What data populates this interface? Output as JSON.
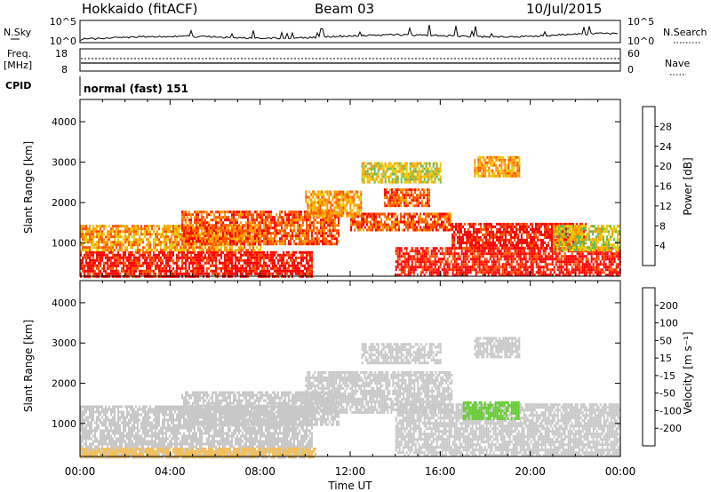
{
  "header": {
    "station": "Hokkaido (fitACF)",
    "beam": "Beam 03",
    "date": "10/Jul/2015"
  },
  "top_panels": {
    "nsky_label": "N.Sky",
    "nsearch_label": "N.Search",
    "noise_ticks": [
      "10^5",
      "10^0"
    ],
    "freq_label": "Freq.",
    "freq_unit": "[MHz]",
    "freq_ticks": [
      "18",
      "8"
    ],
    "nave_label": "Nave",
    "nave_ticks": [
      "60",
      "0"
    ],
    "cpid_label": "CPID",
    "cpid_text": "normal (fast) 151"
  },
  "colors": {
    "power_scale": [
      "#0000ff",
      "#1f3d9c",
      "#3a8a3a",
      "#66bb55",
      "#e8cc00",
      "#ff9900",
      "#ff5500",
      "#ff0000"
    ],
    "velocity_scale": [
      "#ff0000",
      "#ff5500",
      "#ff9900",
      "#f0c060",
      "#c8c8c8",
      "#66cc33",
      "#2e8b57",
      "#1e3c9c",
      "#0a1fd0"
    ],
    "velocity_ground": "#c8c8c8"
  },
  "chart_data": [
    {
      "type": "heatmap",
      "name": "power",
      "xlabel": "",
      "ylabel": "Slant Range [km]",
      "x_ticks": [
        "00:00",
        "04:00",
        "08:00",
        "12:00",
        "16:00",
        "20:00",
        "00:00"
      ],
      "y_ticks": [
        "1000",
        "2000",
        "3000",
        "4000"
      ],
      "ylim": [
        180,
        4550
      ],
      "xlim_hours": [
        0,
        24
      ],
      "colorbar_label": "Power [dB]",
      "colorbar_ticks": [
        "4",
        "8",
        "12",
        "16",
        "20",
        "24",
        "28"
      ],
      "regions": [
        {
          "t0": 0.0,
          "t1": 10.3,
          "r0": 180,
          "r1": 800,
          "level": 7
        },
        {
          "t0": 0.0,
          "t1": 8.0,
          "r0": 800,
          "r1": 1450,
          "level": 5
        },
        {
          "t0": 4.5,
          "t1": 11.5,
          "r0": 950,
          "r1": 1800,
          "level": 6
        },
        {
          "t0": 10.0,
          "t1": 12.5,
          "r0": 1700,
          "r1": 2300,
          "level": 5
        },
        {
          "t0": 12.0,
          "t1": 16.5,
          "r0": 1300,
          "r1": 1750,
          "level": 6
        },
        {
          "t0": 13.5,
          "t1": 15.5,
          "r0": 1900,
          "r1": 2350,
          "level": 6
        },
        {
          "t0": 12.5,
          "t1": 16.0,
          "r0": 2500,
          "r1": 3000,
          "level": 4
        },
        {
          "t0": 14.0,
          "t1": 24.0,
          "r0": 180,
          "r1": 900,
          "level": 7
        },
        {
          "t0": 16.5,
          "t1": 22.5,
          "r0": 900,
          "r1": 1500,
          "level": 7
        },
        {
          "t0": 17.5,
          "t1": 19.5,
          "r0": 2650,
          "r1": 3150,
          "level": 5
        },
        {
          "t0": 21.0,
          "t1": 24.0,
          "r0": 800,
          "r1": 1450,
          "level": 4
        }
      ]
    },
    {
      "type": "heatmap",
      "name": "velocity",
      "xlabel": "Time UT",
      "ylabel": "Slant Range [km]",
      "x_ticks": [
        "00:00",
        "04:00",
        "08:00",
        "12:00",
        "16:00",
        "20:00",
        "00:00"
      ],
      "y_ticks": [
        "1000",
        "2000",
        "3000",
        "4000"
      ],
      "ylim": [
        180,
        4550
      ],
      "xlim_hours": [
        0,
        24
      ],
      "colorbar_label": "Velocity [m s⁻¹]",
      "colorbar_ticks": [
        "200",
        "100",
        "50",
        "15",
        "-15",
        "-50",
        "-100",
        "-200"
      ],
      "regions": [
        {
          "t0": 0.0,
          "t1": 10.3,
          "r0": 180,
          "r1": 1450,
          "level": 4
        },
        {
          "t0": 4.5,
          "t1": 11.5,
          "r0": 950,
          "r1": 1800,
          "level": 4
        },
        {
          "t0": 10.0,
          "t1": 16.5,
          "r0": 1300,
          "r1": 2300,
          "level": 4
        },
        {
          "t0": 12.5,
          "t1": 16.0,
          "r0": 2500,
          "r1": 3000,
          "level": 4
        },
        {
          "t0": 14.0,
          "t1": 24.0,
          "r0": 180,
          "r1": 1500,
          "level": 4
        },
        {
          "t0": 17.5,
          "t1": 19.5,
          "r0": 2650,
          "r1": 3150,
          "level": 4
        },
        {
          "t0": 17.0,
          "t1": 19.5,
          "r0": 1100,
          "r1": 1550,
          "level": 5
        },
        {
          "t0": 0.0,
          "t1": 10.5,
          "r0": 180,
          "r1": 400,
          "level": 3
        }
      ]
    }
  ]
}
